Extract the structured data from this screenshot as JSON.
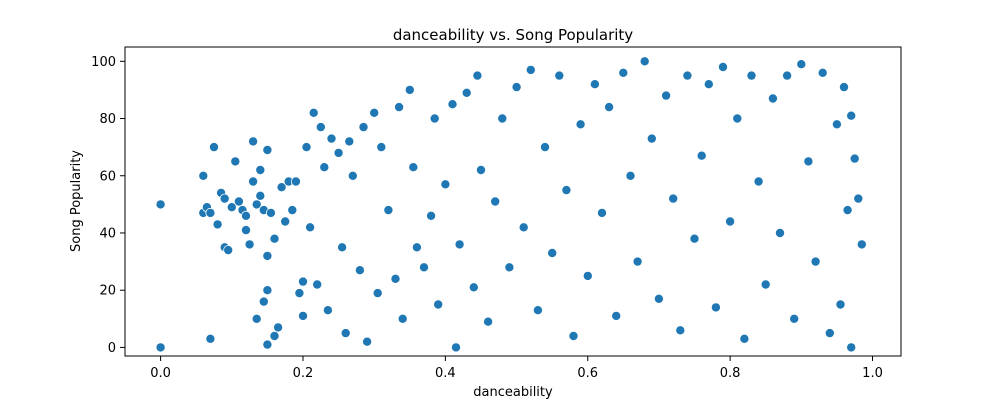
{
  "chart_data": {
    "type": "scatter",
    "title": "danceability vs. Song Popularity",
    "xlabel": "danceability",
    "ylabel": "Song Popularity",
    "xlim": [
      -0.05,
      1.04
    ],
    "ylim": [
      -3,
      105
    ],
    "xticks": [
      0.0,
      0.2,
      0.4,
      0.6,
      0.8,
      1.0
    ],
    "xtick_labels": [
      "0.0",
      "0.2",
      "0.4",
      "0.6",
      "0.8",
      "1.0"
    ],
    "yticks": [
      0,
      20,
      40,
      60,
      80,
      100
    ],
    "ytick_labels": [
      "0",
      "20",
      "40",
      "60",
      "80",
      "100"
    ],
    "grid": false,
    "marker_color": "#1f77b4",
    "marker_edge": "#ffffff",
    "series": [
      {
        "points": [
          [
            0.0,
            50
          ],
          [
            0.0,
            0
          ],
          [
            0.06,
            47
          ],
          [
            0.06,
            60
          ],
          [
            0.065,
            49
          ],
          [
            0.07,
            47
          ],
          [
            0.07,
            3
          ],
          [
            0.075,
            70
          ],
          [
            0.08,
            43
          ],
          [
            0.085,
            54
          ],
          [
            0.09,
            52
          ],
          [
            0.09,
            35
          ],
          [
            0.095,
            34
          ],
          [
            0.1,
            49
          ],
          [
            0.105,
            65
          ],
          [
            0.11,
            51
          ],
          [
            0.115,
            48
          ],
          [
            0.12,
            46
          ],
          [
            0.12,
            41
          ],
          [
            0.125,
            36
          ],
          [
            0.13,
            72
          ],
          [
            0.13,
            58
          ],
          [
            0.135,
            50
          ],
          [
            0.135,
            10
          ],
          [
            0.14,
            62
          ],
          [
            0.14,
            53
          ],
          [
            0.145,
            48
          ],
          [
            0.145,
            16
          ],
          [
            0.15,
            69
          ],
          [
            0.15,
            32
          ],
          [
            0.15,
            20
          ],
          [
            0.15,
            1
          ],
          [
            0.155,
            47
          ],
          [
            0.16,
            38
          ],
          [
            0.16,
            4
          ],
          [
            0.165,
            7
          ],
          [
            0.17,
            56
          ],
          [
            0.175,
            44
          ],
          [
            0.18,
            58
          ],
          [
            0.185,
            48
          ],
          [
            0.19,
            58
          ],
          [
            0.195,
            19
          ],
          [
            0.2,
            23
          ],
          [
            0.2,
            11
          ],
          [
            0.205,
            70
          ],
          [
            0.21,
            42
          ],
          [
            0.215,
            82
          ],
          [
            0.22,
            22
          ],
          [
            0.225,
            77
          ],
          [
            0.23,
            63
          ],
          [
            0.235,
            13
          ],
          [
            0.24,
            73
          ],
          [
            0.25,
            68
          ],
          [
            0.255,
            35
          ],
          [
            0.26,
            5
          ],
          [
            0.265,
            72
          ],
          [
            0.27,
            60
          ],
          [
            0.28,
            27
          ],
          [
            0.285,
            77
          ],
          [
            0.29,
            2
          ],
          [
            0.3,
            82
          ],
          [
            0.305,
            19
          ],
          [
            0.31,
            70
          ],
          [
            0.32,
            48
          ],
          [
            0.33,
            24
          ],
          [
            0.335,
            84
          ],
          [
            0.34,
            10
          ],
          [
            0.35,
            90
          ],
          [
            0.355,
            63
          ],
          [
            0.36,
            35
          ],
          [
            0.37,
            28
          ],
          [
            0.38,
            46
          ],
          [
            0.385,
            80
          ],
          [
            0.39,
            15
          ],
          [
            0.4,
            57
          ],
          [
            0.41,
            85
          ],
          [
            0.415,
            0
          ],
          [
            0.42,
            36
          ],
          [
            0.43,
            89
          ],
          [
            0.44,
            21
          ],
          [
            0.445,
            95
          ],
          [
            0.45,
            62
          ],
          [
            0.46,
            9
          ],
          [
            0.47,
            51
          ],
          [
            0.48,
            80
          ],
          [
            0.49,
            28
          ],
          [
            0.5,
            91
          ],
          [
            0.51,
            42
          ],
          [
            0.52,
            97
          ],
          [
            0.53,
            13
          ],
          [
            0.54,
            70
          ],
          [
            0.55,
            33
          ],
          [
            0.56,
            95
          ],
          [
            0.57,
            55
          ],
          [
            0.58,
            4
          ],
          [
            0.59,
            78
          ],
          [
            0.6,
            25
          ],
          [
            0.61,
            92
          ],
          [
            0.62,
            47
          ],
          [
            0.63,
            84
          ],
          [
            0.64,
            11
          ],
          [
            0.65,
            96
          ],
          [
            0.66,
            60
          ],
          [
            0.67,
            30
          ],
          [
            0.68,
            100
          ],
          [
            0.69,
            73
          ],
          [
            0.7,
            17
          ],
          [
            0.71,
            88
          ],
          [
            0.72,
            52
          ],
          [
            0.73,
            6
          ],
          [
            0.74,
            95
          ],
          [
            0.75,
            38
          ],
          [
            0.76,
            67
          ],
          [
            0.77,
            92
          ],
          [
            0.78,
            14
          ],
          [
            0.79,
            98
          ],
          [
            0.8,
            44
          ],
          [
            0.81,
            80
          ],
          [
            0.82,
            3
          ],
          [
            0.83,
            95
          ],
          [
            0.84,
            58
          ],
          [
            0.85,
            22
          ],
          [
            0.86,
            87
          ],
          [
            0.87,
            40
          ],
          [
            0.88,
            95
          ],
          [
            0.89,
            10
          ],
          [
            0.9,
            99
          ],
          [
            0.91,
            65
          ],
          [
            0.92,
            30
          ],
          [
            0.93,
            96
          ],
          [
            0.94,
            5
          ],
          [
            0.95,
            78
          ],
          [
            0.955,
            15
          ],
          [
            0.96,
            91
          ],
          [
            0.965,
            48
          ],
          [
            0.97,
            81
          ],
          [
            0.97,
            0
          ],
          [
            0.975,
            66
          ],
          [
            0.98,
            52
          ],
          [
            0.985,
            36
          ]
        ]
      }
    ]
  }
}
